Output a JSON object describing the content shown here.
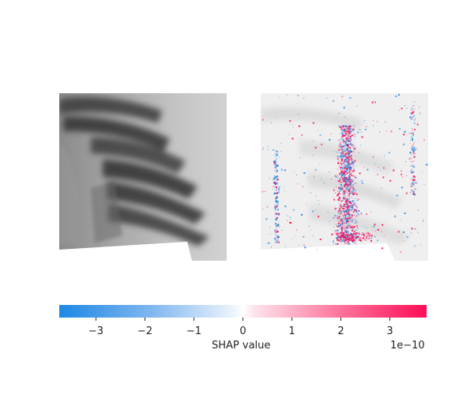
{
  "chart_data": {
    "type": "heatmap",
    "panels": [
      {
        "name": "input-xray-image",
        "cmap": "gray"
      },
      {
        "name": "shap-attribution-map",
        "cmap": "blue-white-red"
      }
    ],
    "colorbar": {
      "label": "SHAP value",
      "offset_text": "1e−10",
      "range": [
        -3.75,
        3.75
      ],
      "ticks": [
        -3,
        -2,
        -1,
        0,
        1,
        2,
        3
      ],
      "tick_labels": [
        "−3",
        "−2",
        "−1",
        "0",
        "1",
        "2",
        "3"
      ],
      "colors": {
        "negative": "#1e88e5",
        "zero": "#ffffff",
        "positive": "#ff0d57"
      }
    }
  }
}
